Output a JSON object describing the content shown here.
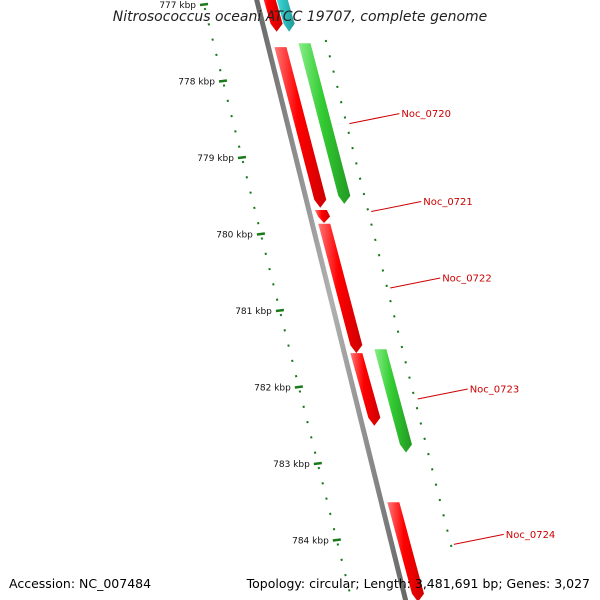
{
  "title": "Nitrosococcus oceani ATCC 19707, complete genome",
  "footer": {
    "accession": "Accession: NC_007484",
    "summary": "Topology: circular; Length: 3,481,691 bp; Genes: 3,027"
  },
  "colors": {
    "backbone": "#8a8a8a",
    "tick": "#1a7a1a",
    "forward_gene": "#ff0000",
    "reverse_gene": "#33cc33",
    "rna_gene": "#33cccc",
    "label": "#cc0000"
  },
  "ticks": [
    {
      "label": "777 kbp",
      "kbp": 777
    },
    {
      "label": "778 kbp",
      "kbp": 778
    },
    {
      "label": "779 kbp",
      "kbp": 779
    },
    {
      "label": "780 kbp",
      "kbp": 780
    },
    {
      "label": "781 kbp",
      "kbp": 781
    },
    {
      "label": "782 kbp",
      "kbp": 782
    },
    {
      "label": "783 kbp",
      "kbp": 783
    },
    {
      "label": "784 kbp",
      "kbp": 784
    }
  ],
  "genes": [
    {
      "track": "forward",
      "start_kbp": 776.6,
      "end_kbp": 777.35,
      "type": "CDS"
    },
    {
      "track": "rna",
      "start_kbp": 776.6,
      "end_kbp": 777.35,
      "type": "RNA"
    },
    {
      "track": "forward",
      "start_kbp": 777.55,
      "end_kbp": 779.65,
      "type": "CDS"
    },
    {
      "track": "reverse",
      "start_kbp": 777.5,
      "end_kbp": 779.6,
      "type": "CDS",
      "name": "Noc_0720"
    },
    {
      "track": "forward",
      "start_kbp": 779.68,
      "end_kbp": 779.85,
      "type": "CDS",
      "name": "Noc_0721"
    },
    {
      "track": "forward",
      "start_kbp": 779.86,
      "end_kbp": 781.55,
      "type": "CDS",
      "name": "Noc_0722"
    },
    {
      "track": "forward",
      "start_kbp": 781.55,
      "end_kbp": 782.5,
      "type": "CDS"
    },
    {
      "track": "reverse",
      "start_kbp": 781.5,
      "end_kbp": 782.85,
      "type": "CDS",
      "name": "Noc_0723"
    },
    {
      "track": "forward",
      "start_kbp": 783.5,
      "end_kbp": 784.8,
      "type": "CDS",
      "name": "Noc_0724"
    }
  ],
  "gene_labels": [
    {
      "text": "Noc_0720",
      "kbp": 778.55
    },
    {
      "text": "Noc_0721",
      "kbp": 779.7
    },
    {
      "text": "Noc_0722",
      "kbp": 780.7
    },
    {
      "text": "Noc_0723",
      "kbp": 782.15
    },
    {
      "text": "Noc_0724",
      "kbp": 784.05
    }
  ]
}
